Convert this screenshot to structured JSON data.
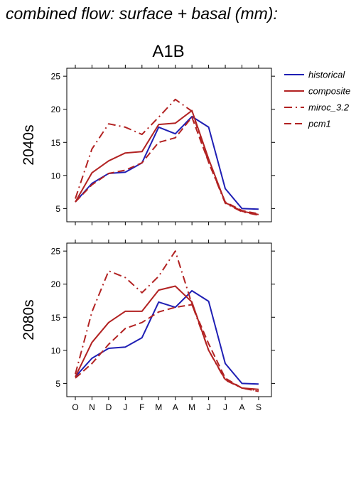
{
  "figure": {
    "title": "combined flow: surface + basal (mm):",
    "scenario": "A1B"
  },
  "legend": [
    {
      "label": "historical",
      "color": "#1f1fb4",
      "dash": "solid"
    },
    {
      "label": "composite",
      "color": "#b22222",
      "dash": "solid"
    },
    {
      "label": "miroc_3.2",
      "color": "#b22222",
      "dash": "dashdot"
    },
    {
      "label": "pcm1",
      "color": "#b22222",
      "dash": "dashed"
    }
  ],
  "chart_data": [
    {
      "type": "line",
      "panel_label": "2040s",
      "categories": [
        "O",
        "N",
        "D",
        "J",
        "F",
        "M",
        "A",
        "M",
        "J",
        "J",
        "A",
        "S"
      ],
      "yticks": [
        5,
        10,
        15,
        20,
        25
      ],
      "ylim": [
        3,
        26.2
      ],
      "series": [
        {
          "name": "historical",
          "values": [
            6.0,
            8.8,
            10.3,
            10.5,
            11.9,
            17.3,
            16.3,
            18.9,
            17.3,
            8.0,
            5.0,
            4.9
          ]
        },
        {
          "name": "composite",
          "values": [
            6.0,
            10.4,
            12.2,
            13.4,
            13.6,
            17.7,
            17.9,
            19.8,
            12.5,
            5.9,
            4.6,
            4.1
          ]
        },
        {
          "name": "miroc_3.2",
          "values": [
            6.5,
            14.0,
            17.8,
            17.3,
            16.2,
            18.8,
            21.5,
            19.7,
            12.0,
            5.8,
            4.5,
            4.0
          ]
        },
        {
          "name": "pcm1",
          "values": [
            6.0,
            8.6,
            10.3,
            10.8,
            11.9,
            15.0,
            15.7,
            18.8,
            12.0,
            6.0,
            4.7,
            4.2
          ]
        }
      ]
    },
    {
      "type": "line",
      "panel_label": "2080s",
      "categories": [
        "O",
        "N",
        "D",
        "J",
        "F",
        "M",
        "A",
        "M",
        "J",
        "J",
        "A",
        "S"
      ],
      "yticks": [
        5,
        10,
        15,
        20,
        25
      ],
      "ylim": [
        3,
        26.2
      ],
      "series": [
        {
          "name": "historical",
          "values": [
            6.0,
            8.8,
            10.3,
            10.5,
            11.9,
            17.3,
            16.5,
            19.0,
            17.4,
            8.0,
            5.0,
            4.9
          ]
        },
        {
          "name": "composite",
          "values": [
            6.0,
            11.2,
            14.2,
            15.9,
            15.9,
            19.1,
            19.7,
            17.3,
            10.0,
            5.6,
            4.3,
            4.1
          ]
        },
        {
          "name": "miroc_3.2",
          "values": [
            6.4,
            15.8,
            22.0,
            21.0,
            18.7,
            21.2,
            25.0,
            17.0,
            10.0,
            5.5,
            4.3,
            3.9
          ]
        },
        {
          "name": "pcm1",
          "values": [
            5.8,
            8.0,
            10.9,
            13.3,
            14.2,
            15.8,
            16.5,
            16.9,
            11.0,
            5.8,
            4.3,
            3.8
          ]
        }
      ]
    }
  ]
}
